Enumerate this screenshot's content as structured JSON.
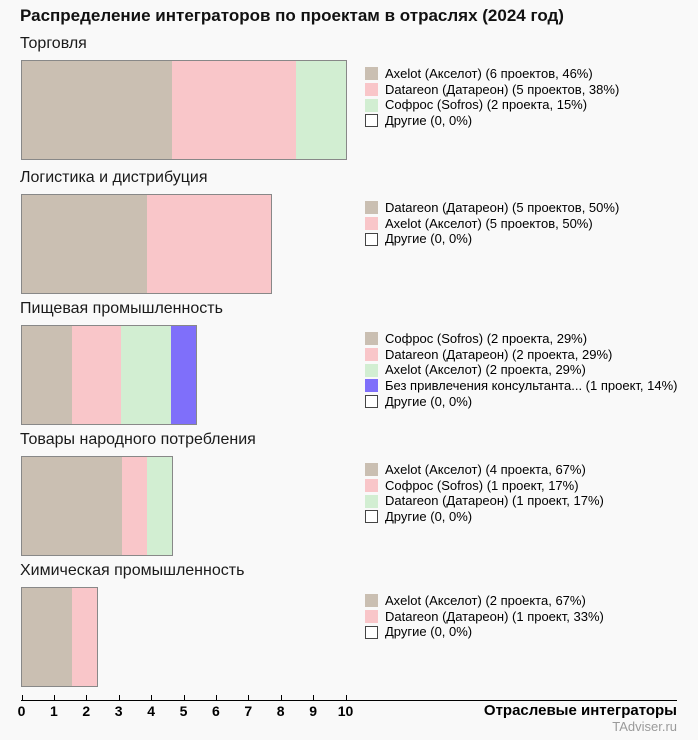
{
  "title": "Распределение интеграторов по проектам в отраслях (2024 год)",
  "axis": {
    "label": "Отраслевые интеграторы",
    "ticks": [
      0,
      1,
      2,
      3,
      4,
      5,
      6,
      7,
      8,
      9,
      10
    ],
    "range_projects": [
      0,
      13
    ]
  },
  "source": "TAdviser.ru",
  "colors": {
    "background": "#f9f9f9",
    "bar_border": "#888888",
    "segment_1": "#cabfb2",
    "segment_2": "#f9c6c9",
    "segment_3": "#d2eed2",
    "segment_4": "#7f6ffa",
    "others_swatch": "#ffffff",
    "source_text": "#9a9a9a"
  },
  "chart_data": {
    "type": "bar",
    "orientation": "horizontal-stacked",
    "title": "Распределение интеграторов по проектам в отраслях (2024 год)",
    "xlabel": "Отраслевые интеграторы",
    "xlim": [
      0,
      10
    ],
    "grid": false,
    "legend_position": "right-of-each-bar",
    "sections": [
      {
        "category": "Торговля",
        "total_projects": 13,
        "segments": [
          {
            "name": "Axelot (Акселот)",
            "projects": 6,
            "percent": 46,
            "color": "#cabfb2",
            "label": "Axelot (Акселот) (6 проектов, 46%)"
          },
          {
            "name": "Datareon (Датареон)",
            "projects": 5,
            "percent": 38,
            "color": "#f9c6c9",
            "label": "Datareon (Датареон) (5 проектов, 38%)"
          },
          {
            "name": "Софрос (Sofros)",
            "projects": 2,
            "percent": 15,
            "color": "#d2eed2",
            "label": "Софрос (Sofros) (2 проекта, 15%)"
          },
          {
            "name": "Другие",
            "projects": 0,
            "percent": 0,
            "color": "#ffffff",
            "label": "Другие (0, 0%)"
          }
        ]
      },
      {
        "category": "Логистика и дистрибуция",
        "total_projects": 10,
        "segments": [
          {
            "name": "Datareon (Датареон)",
            "projects": 5,
            "percent": 50,
            "color": "#cabfb2",
            "label": "Datareon (Датареон) (5 проектов, 50%)"
          },
          {
            "name": "Axelot (Акселот)",
            "projects": 5,
            "percent": 50,
            "color": "#f9c6c9",
            "label": "Axelot (Акселот) (5 проектов, 50%)"
          },
          {
            "name": "Другие",
            "projects": 0,
            "percent": 0,
            "color": "#ffffff",
            "label": "Другие (0, 0%)"
          }
        ]
      },
      {
        "category": "Пищевая промышленность",
        "total_projects": 7,
        "segments": [
          {
            "name": "Софрос (Sofros)",
            "projects": 2,
            "percent": 29,
            "color": "#cabfb2",
            "label": "Софрос (Sofros) (2 проекта, 29%)"
          },
          {
            "name": "Datareon (Датареон)",
            "projects": 2,
            "percent": 29,
            "color": "#f9c6c9",
            "label": "Datareon (Датареон) (2 проекта, 29%)"
          },
          {
            "name": "Axelot (Акселот)",
            "projects": 2,
            "percent": 29,
            "color": "#d2eed2",
            "label": "Axelot (Акселот) (2 проекта, 29%)"
          },
          {
            "name": "Без привлечения консультанта...",
            "projects": 1,
            "percent": 14,
            "color": "#7f6ffa",
            "label": "Без привлечения консультанта... (1 проект, 14%)"
          },
          {
            "name": "Другие",
            "projects": 0,
            "percent": 0,
            "color": "#ffffff",
            "label": "Другие (0, 0%)"
          }
        ]
      },
      {
        "category": "Товары народного потребления",
        "total_projects": 6,
        "segments": [
          {
            "name": "Axelot (Акселот)",
            "projects": 4,
            "percent": 67,
            "color": "#cabfb2",
            "label": "Axelot (Акселот) (4 проекта, 67%)"
          },
          {
            "name": "Софрос (Sofros)",
            "projects": 1,
            "percent": 17,
            "color": "#f9c6c9",
            "label": "Софрос (Sofros) (1 проект, 17%)"
          },
          {
            "name": "Datareon (Датареон)",
            "projects": 1,
            "percent": 17,
            "color": "#d2eed2",
            "label": "Datareon (Датареон) (1 проект, 17%)"
          },
          {
            "name": "Другие",
            "projects": 0,
            "percent": 0,
            "color": "#ffffff",
            "label": "Другие (0, 0%)"
          }
        ]
      },
      {
        "category": "Химическая промышленность",
        "total_projects": 3,
        "segments": [
          {
            "name": "Axelot (Акселот)",
            "projects": 2,
            "percent": 67,
            "color": "#cabfb2",
            "label": "Axelot (Акселот) (2 проекта, 67%)"
          },
          {
            "name": "Datareon (Датареон)",
            "projects": 1,
            "percent": 33,
            "color": "#f9c6c9",
            "label": "Datareon (Датареон) (1 проект, 33%)"
          },
          {
            "name": "Другие",
            "projects": 0,
            "percent": 0,
            "color": "#ffffff",
            "label": "Другие (0, 0%)"
          }
        ]
      }
    ]
  }
}
